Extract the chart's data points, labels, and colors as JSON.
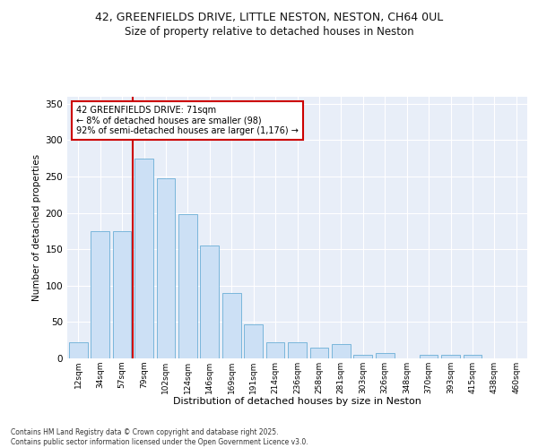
{
  "title_line1": "42, GREENFIELDS DRIVE, LITTLE NESTON, NESTON, CH64 0UL",
  "title_line2": "Size of property relative to detached houses in Neston",
  "xlabel": "Distribution of detached houses by size in Neston",
  "ylabel": "Number of detached properties",
  "categories": [
    "12sqm",
    "34sqm",
    "57sqm",
    "79sqm",
    "102sqm",
    "124sqm",
    "146sqm",
    "169sqm",
    "191sqm",
    "214sqm",
    "236sqm",
    "258sqm",
    "281sqm",
    "303sqm",
    "326sqm",
    "348sqm",
    "370sqm",
    "393sqm",
    "415sqm",
    "438sqm",
    "460sqm"
  ],
  "values": [
    22,
    175,
    175,
    275,
    248,
    198,
    155,
    90,
    47,
    22,
    22,
    15,
    20,
    5,
    8,
    0,
    5,
    5,
    5,
    0,
    0
  ],
  "bar_color": "#cce0f5",
  "bar_edgecolor": "#6aaed6",
  "vline_x": 2.5,
  "vline_color": "#cc0000",
  "annotation_text": "42 GREENFIELDS DRIVE: 71sqm\n← 8% of detached houses are smaller (98)\n92% of semi-detached houses are larger (1,176) →",
  "annotation_box_edgecolor": "#cc0000",
  "annotation_box_facecolor": "#ffffff",
  "ylim": [
    0,
    360
  ],
  "yticks": [
    0,
    50,
    100,
    150,
    200,
    250,
    300,
    350
  ],
  "plot_bg_color": "#e8eef8",
  "grid_color": "#ffffff",
  "fig_bg_color": "#ffffff",
  "footer_line1": "Contains HM Land Registry data © Crown copyright and database right 2025.",
  "footer_line2": "Contains public sector information licensed under the Open Government Licence v3.0."
}
